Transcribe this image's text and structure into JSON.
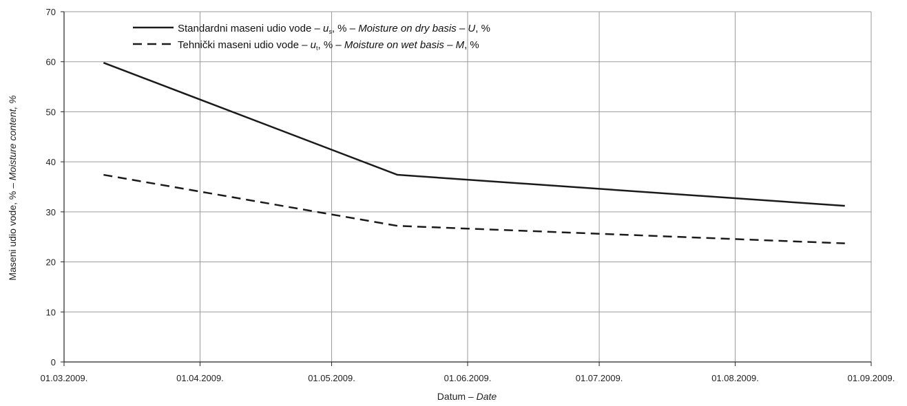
{
  "chart_data": {
    "type": "line",
    "x": [
      "2009-03-10",
      "2009-05-16",
      "2009-08-26"
    ],
    "x_tick_labels": [
      "01.03.2009.",
      "01.04.2009.",
      "01.05.2009.",
      "01.06.2009.",
      "01.07.2009.",
      "01.08.2009.",
      "01.09.2009."
    ],
    "x_tick_dates": [
      "2009-03-01",
      "2009-04-01",
      "2009-05-01",
      "2009-06-01",
      "2009-07-01",
      "2009-08-01",
      "2009-09-01"
    ],
    "xlim": [
      "2009-03-01",
      "2009-09-01"
    ],
    "y_ticks": [
      "0",
      "10",
      "20",
      "30",
      "40",
      "50",
      "60",
      "70"
    ],
    "ylim": [
      0,
      70
    ],
    "grid": true,
    "legend_position": "top-left",
    "xlabel": {
      "main": "Datum – ",
      "italic": "Date"
    },
    "ylabel": {
      "main": "Maseni udio vode, % – ",
      "italic": "Moisture content, %"
    },
    "series": [
      {
        "name": "Standardni maseni udio vode – us, % – Moisture on dry basis – U, %",
        "legend_parts": {
          "pre": "Standardni maseni udio vode – ",
          "var": "u",
          "sub": "s",
          "mid": ", % – ",
          "italic": "Moisture on dry basis – U",
          "post": ", %"
        },
        "style": "solid",
        "color": "#1a1a1a",
        "values": [
          59.8,
          37.4,
          31.2
        ]
      },
      {
        "name": "Tehnički maseni udio vode – ut, % – Moisture on wet basis – M, %",
        "legend_parts": {
          "pre": "Tehnički maseni udio vode – ",
          "var": "u",
          "sub": "t",
          "mid": ", % – ",
          "italic": "Moisture on wet basis – M",
          "post": ", %"
        },
        "style": "dashed",
        "color": "#1a1a1a",
        "values": [
          37.4,
          27.2,
          23.7
        ]
      }
    ]
  }
}
